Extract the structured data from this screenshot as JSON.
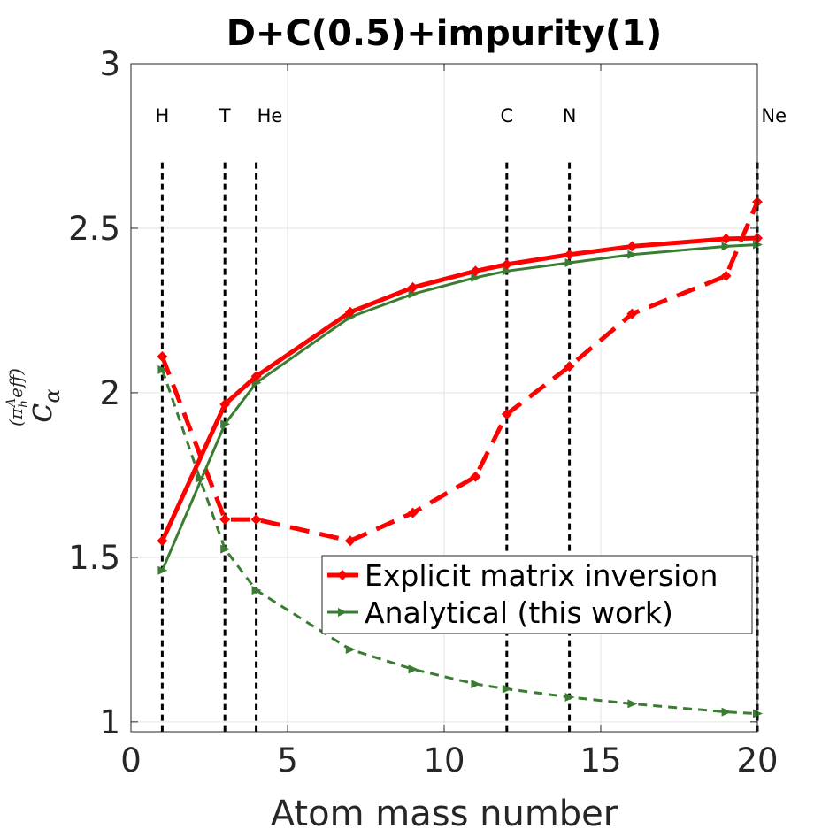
{
  "chart_data": {
    "type": "line",
    "title": "D+C(0.5)+impurity(1)",
    "xlabel": "Atom mass number",
    "ylabel": {
      "base": "c",
      "sub": "α",
      "sup_pi": "(π",
      "sup_h": "h",
      "sup_A": "A",
      "sup_eff": "eff)"
    },
    "xlim": [
      0,
      20
    ],
    "ylim": [
      0.97,
      3
    ],
    "xticks": [
      0,
      5,
      10,
      15,
      20
    ],
    "xtick_labels": [
      "0",
      "5",
      "10",
      "15",
      "20"
    ],
    "yticks": [
      1,
      1.5,
      2,
      2.5,
      3
    ],
    "ytick_labels": [
      "1",
      "1.5",
      "2",
      "2.5",
      "3"
    ],
    "grid": true,
    "elements": [
      {
        "label": "H",
        "x": 1
      },
      {
        "label": "T",
        "x": 3
      },
      {
        "label": "He",
        "x": 4
      },
      {
        "label": "C",
        "x": 12
      },
      {
        "label": "N",
        "x": 14
      },
      {
        "label": "Ne",
        "x": 20
      }
    ],
    "element_line_ymax": 2.7,
    "series": [
      {
        "name": "Explicit matrix inversion",
        "style": "solid",
        "color": "#ff0000",
        "x": [
          1,
          3,
          4,
          7,
          9,
          11,
          12,
          14,
          16,
          19,
          20
        ],
        "values": [
          1.55,
          1.965,
          2.05,
          2.245,
          2.32,
          2.37,
          2.39,
          2.42,
          2.445,
          2.468,
          2.47
        ]
      },
      {
        "name": "Explicit matrix inversion (dashed)",
        "style": "dashed",
        "color": "#ff0000",
        "x": [
          1,
          3,
          4,
          7,
          9,
          11,
          12,
          14,
          16,
          19,
          20
        ],
        "values": [
          2.11,
          1.615,
          1.615,
          1.55,
          1.635,
          1.745,
          1.935,
          2.08,
          2.24,
          2.355,
          2.58
        ]
      },
      {
        "name": "Analytical (this work)",
        "style": "solid",
        "color": "#3a7d32",
        "x": [
          1,
          3,
          4,
          7,
          9,
          11,
          12,
          14,
          16,
          19,
          20
        ],
        "values": [
          1.46,
          1.905,
          2.03,
          2.23,
          2.3,
          2.35,
          2.37,
          2.395,
          2.42,
          2.445,
          2.45
        ]
      },
      {
        "name": "Analytical (this work) (dashed)",
        "style": "dashed",
        "color": "#3a7d32",
        "x": [
          1,
          2.2,
          3,
          4,
          7,
          9,
          11,
          12,
          14,
          16,
          19,
          20
        ],
        "values": [
          2.07,
          1.74,
          1.525,
          1.4,
          1.22,
          1.16,
          1.115,
          1.1,
          1.075,
          1.055,
          1.03,
          1.025
        ]
      }
    ],
    "legend": {
      "position": "lower-right",
      "entries": [
        "Explicit matrix inversion",
        "Analytical (this work)"
      ]
    }
  }
}
